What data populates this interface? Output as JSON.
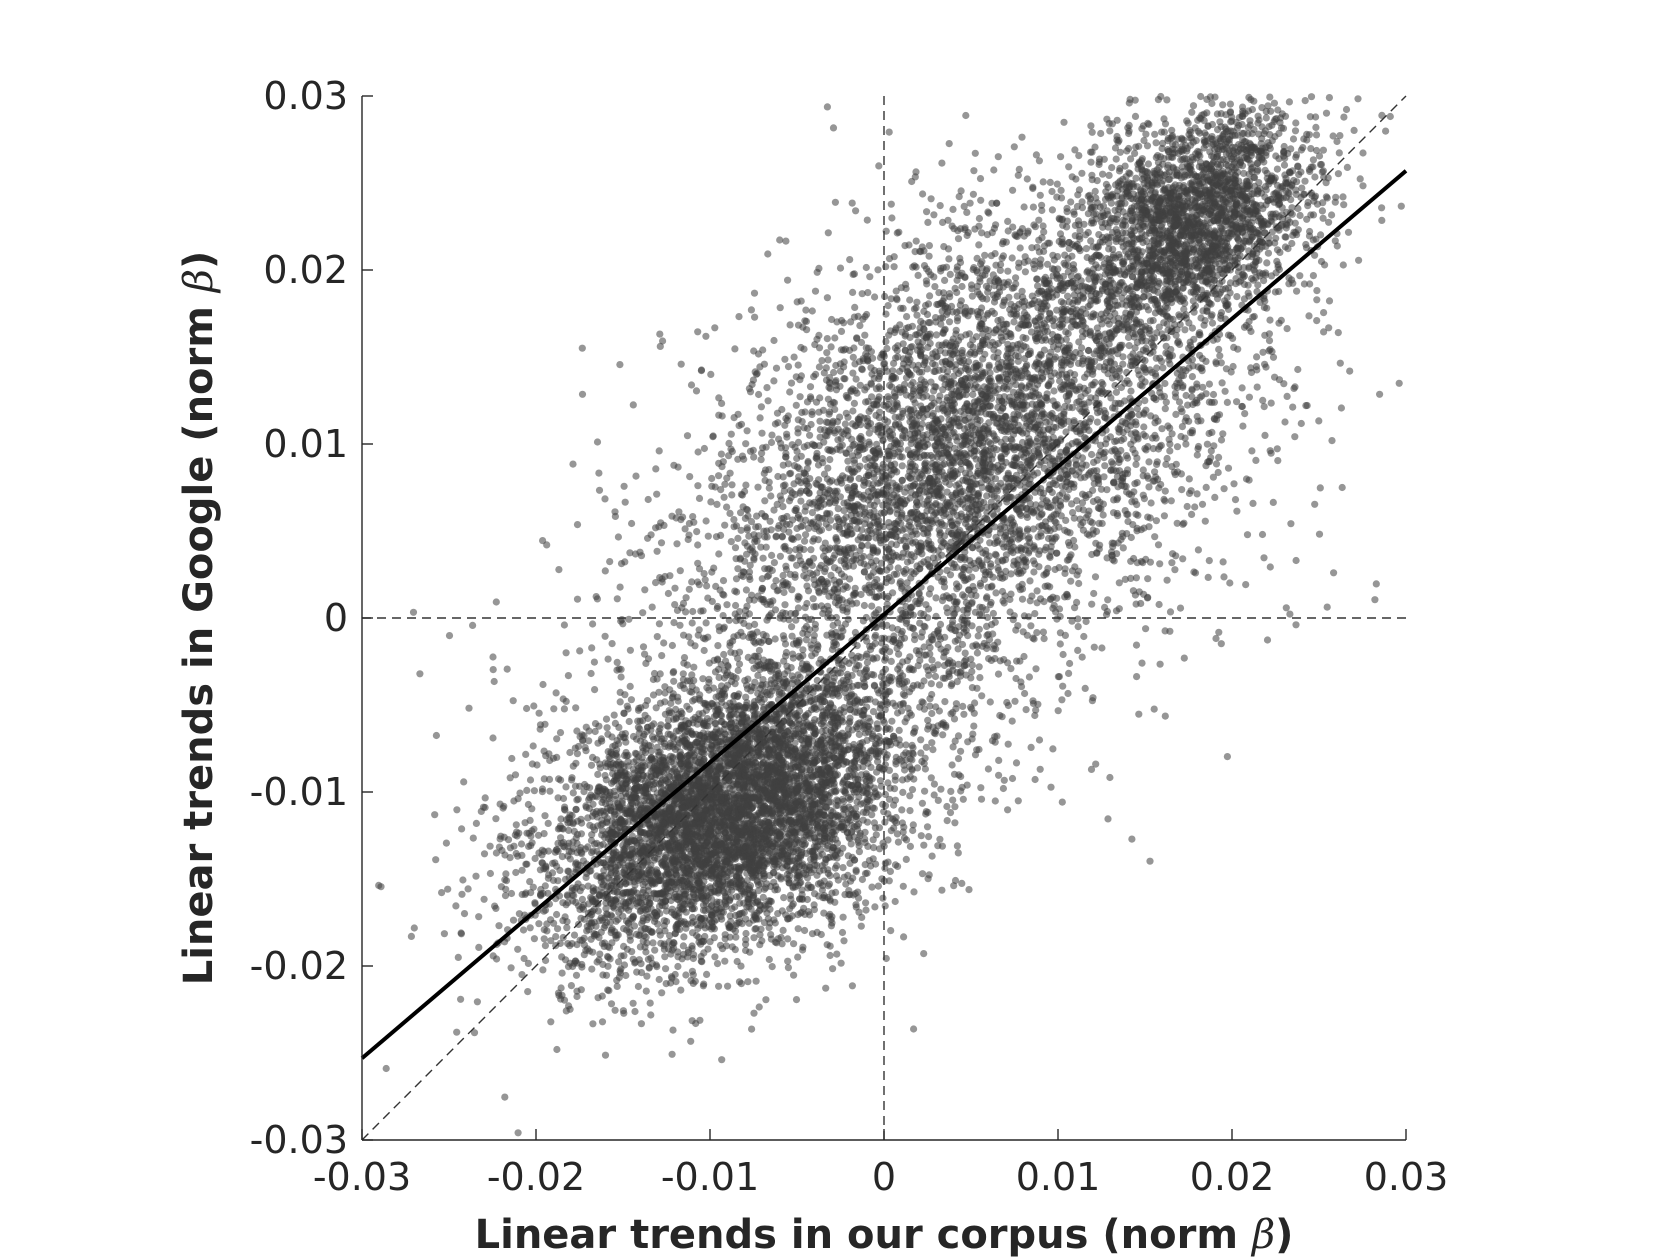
{
  "chart_data": {
    "type": "scatter",
    "title": "",
    "xlabel": "Linear trends in our corpus (norm β)",
    "ylabel": "Linear trends in Google (norm β)",
    "xlabel_main": "Linear trends in our corpus (norm ",
    "ylabel_main": "Linear trends in Google (norm ",
    "label_symbol": "β",
    "label_close": ")",
    "xlim": [
      -0.03,
      0.03
    ],
    "ylim": [
      -0.03,
      0.03
    ],
    "xticks": [
      -0.03,
      -0.02,
      -0.01,
      0,
      0.01,
      0.02,
      0.03
    ],
    "yticks": [
      -0.03,
      -0.02,
      -0.01,
      0,
      0.01,
      0.02,
      0.03
    ],
    "xtick_labels": [
      "-0.03",
      "-0.02",
      "-0.01",
      "0",
      "0.01",
      "0.02",
      "0.03"
    ],
    "ytick_labels": [
      "-0.03",
      "-0.02",
      "-0.01",
      "0",
      "0.01",
      "0.02",
      "0.03"
    ],
    "grid": false,
    "legend": "none",
    "series": [
      {
        "kind": "scatter",
        "color": "#404040",
        "opacity": 0.55,
        "approx_point_count": 14000,
        "clusters": [
          {
            "weight": 0.42,
            "mean": [
              -0.009,
              -0.011
            ],
            "sd": [
              0.0052,
              0.0042
            ],
            "corr": 0.4
          },
          {
            "weight": 0.36,
            "mean": [
              0.005,
              0.01
            ],
            "sd": [
              0.0075,
              0.007
            ],
            "corr": 0.45
          },
          {
            "weight": 0.16,
            "mean": [
              0.018,
              0.023
            ],
            "sd": [
              0.0035,
              0.0032
            ],
            "corr": 0.3
          },
          {
            "weight": 0.06,
            "mean": [
              0.0,
              0.0
            ],
            "sd": [
              0.012,
              0.011
            ],
            "corr": 0.55
          }
        ]
      }
    ],
    "fit_line": {
      "slope": 0.85,
      "intercept": 0.0002,
      "x_range": [
        -0.03,
        0.03
      ],
      "color": "#000000"
    },
    "reference_lines": [
      {
        "kind": "identity",
        "style": "dashed",
        "color": "#333333"
      },
      {
        "kind": "x=0",
        "style": "dashed",
        "color": "#333333"
      },
      {
        "kind": "y=0",
        "style": "dashed",
        "color": "#333333"
      }
    ]
  }
}
